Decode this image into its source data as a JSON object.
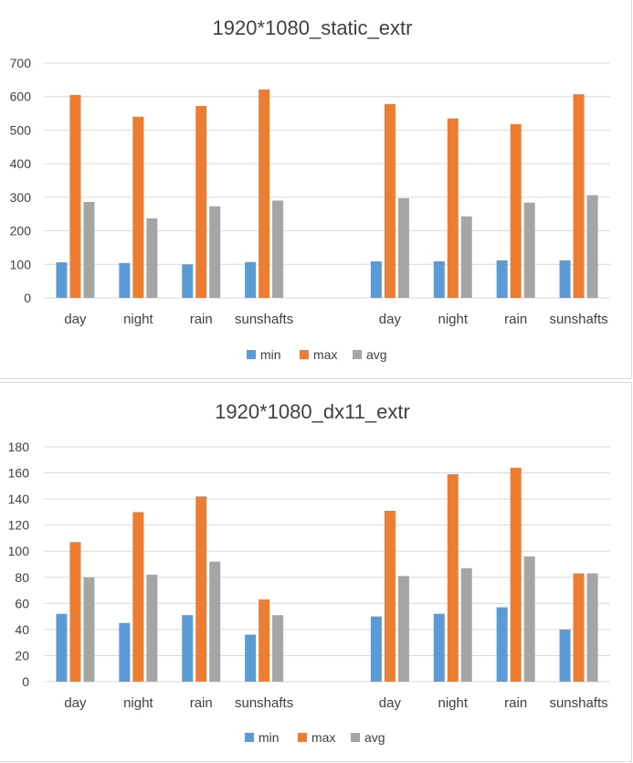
{
  "chart_data": [
    {
      "type": "bar",
      "title": "1920*1080_static_extr",
      "categories": [
        "day",
        "night",
        "rain",
        "sunshafts",
        "",
        "day",
        "night",
        "rain",
        "sunshafts"
      ],
      "series": [
        {
          "name": "min",
          "values": [
            106,
            104,
            100,
            107,
            null,
            109,
            109,
            112,
            112
          ]
        },
        {
          "name": "max",
          "values": [
            605,
            540,
            572,
            621,
            null,
            578,
            535,
            518,
            607
          ]
        },
        {
          "name": "avg",
          "values": [
            286,
            237,
            273,
            290,
            null,
            297,
            243,
            284,
            306
          ]
        }
      ],
      "ylim": [
        0,
        700
      ],
      "yticks": [
        0,
        100,
        200,
        300,
        400,
        500,
        600,
        700
      ],
      "grid": true,
      "legend": "bottom"
    },
    {
      "type": "bar",
      "title": "1920*1080_dx11_extr",
      "categories": [
        "day",
        "night",
        "rain",
        "sunshafts",
        "",
        "day",
        "night",
        "rain",
        "sunshafts"
      ],
      "series": [
        {
          "name": "min",
          "values": [
            52,
            45,
            51,
            36,
            null,
            50,
            52,
            57,
            40
          ]
        },
        {
          "name": "max",
          "values": [
            107,
            130,
            142,
            63,
            null,
            131,
            159,
            164,
            83
          ]
        },
        {
          "name": "avg",
          "values": [
            80,
            82,
            92,
            51,
            null,
            81,
            87,
            96,
            83
          ]
        }
      ],
      "ylim": [
        0,
        180
      ],
      "yticks": [
        0,
        20,
        40,
        60,
        80,
        100,
        120,
        140,
        160,
        180
      ],
      "grid": true,
      "legend": "bottom"
    }
  ],
  "colors": {
    "min": "#5b9bd5",
    "max": "#ed7d31",
    "avg": "#a5a5a5",
    "grid": "#d9d9d9",
    "text": "#404040",
    "title": "#404040"
  }
}
